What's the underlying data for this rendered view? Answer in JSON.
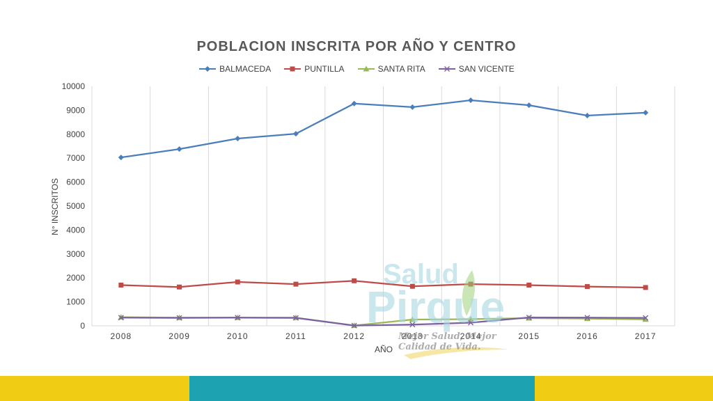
{
  "chart_data": {
    "type": "line",
    "title": "POBLACION INSCRITA POR AÑO Y CENTRO",
    "xlabel": "AÑO",
    "ylabel": "N° INSCRITOS",
    "ylim": [
      0,
      10000
    ],
    "yticks": [
      "0",
      "1000",
      "2000",
      "3000",
      "4000",
      "5000",
      "6000",
      "7000",
      "8000",
      "9000",
      "10000"
    ],
    "categories": [
      "2008",
      "2009",
      "2010",
      "2011",
      "2012",
      "2013",
      "2014",
      "2015",
      "2016",
      "2017"
    ],
    "legend_position": "top",
    "grid": "vertical",
    "series": [
      {
        "name": "BALMACEDA",
        "color": "#4a7ebb",
        "marker": "diamond",
        "values": [
          7030,
          7380,
          7820,
          8020,
          9280,
          9130,
          9420,
          9210,
          8780,
          8900
        ]
      },
      {
        "name": "PUNTILLA",
        "color": "#be4b48",
        "marker": "square",
        "values": [
          1700,
          1620,
          1830,
          1740,
          1880,
          1650,
          1740,
          1700,
          1640,
          1600
        ]
      },
      {
        "name": "SANTA RITA",
        "color": "#98b954",
        "marker": "triangle",
        "values": [
          360,
          340,
          340,
          340,
          10,
          260,
          280,
          320,
          300,
          270
        ]
      },
      {
        "name": "SAN VICENTE",
        "color": "#7d60a0",
        "marker": "x",
        "values": [
          340,
          330,
          340,
          330,
          10,
          50,
          130,
          350,
          340,
          330
        ]
      }
    ]
  },
  "watermark": {
    "line1": "Salud",
    "line2": "Pirque",
    "tagline": "Mejor Salud, Mejor Calidad de Vida."
  },
  "footer": {
    "colors": [
      "#f1cc15",
      "#1da2b2",
      "#f1cc15"
    ],
    "fractions": [
      0.266,
      0.484,
      0.25
    ]
  }
}
